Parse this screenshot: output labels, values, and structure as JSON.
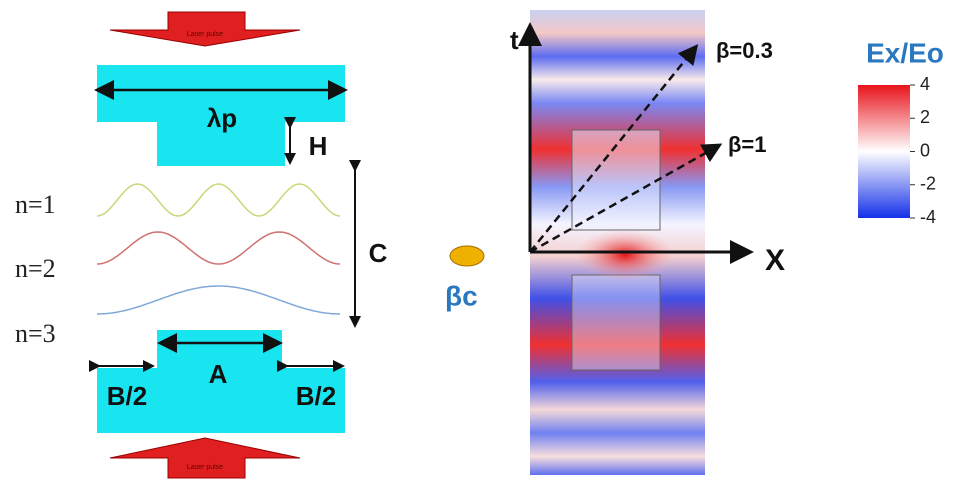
{
  "top_pulse": "Laser pulse",
  "bottom_pulse": "Laser pulse",
  "dims": {
    "period": "λp",
    "height": "H",
    "gap": "C",
    "top_width": "A",
    "side_left": "B/2",
    "side_right": "B/2"
  },
  "modes": [
    "n=1",
    "n=2",
    "n=3"
  ],
  "axes": {
    "t": "t",
    "x": "X"
  },
  "velocities": [
    "β=0.3",
    "β=1"
  ],
  "electron": "βc",
  "colorbar": {
    "title": "Ex/Eo",
    "ticks": [
      4,
      2,
      0,
      -2,
      -4
    ]
  }
}
